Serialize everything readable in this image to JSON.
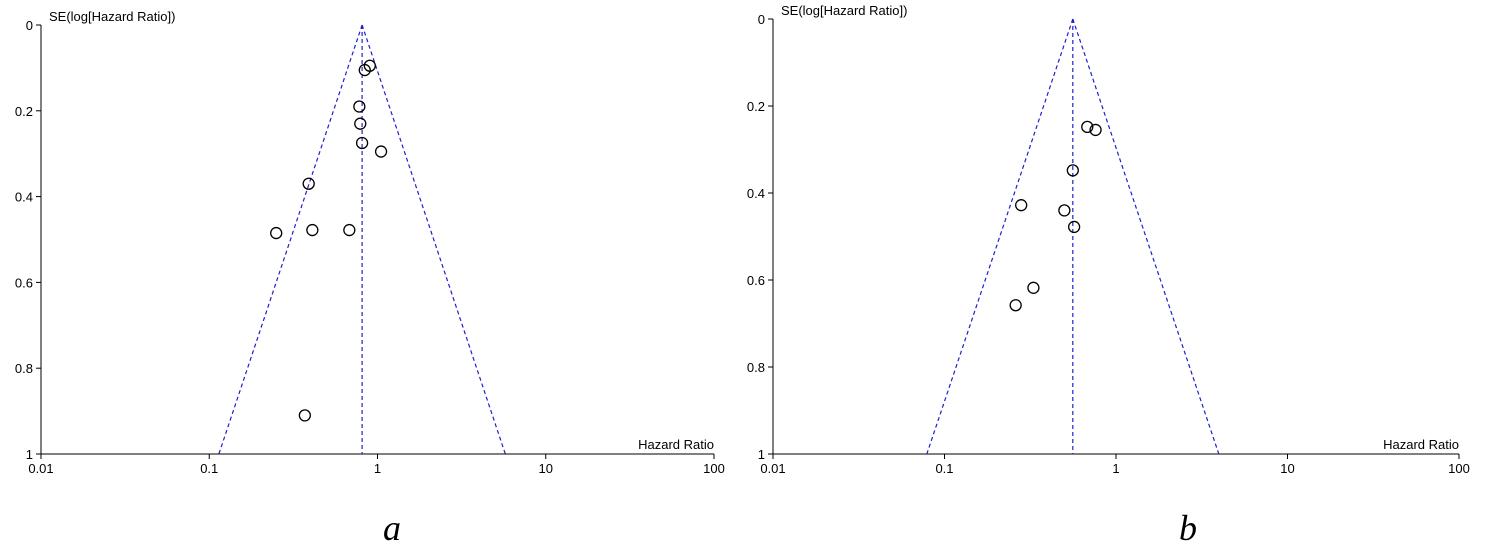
{
  "colors": {
    "funnel_line": "#1f1fcc",
    "axis": "#000000",
    "marker_stroke": "#000000",
    "background": "#ffffff"
  },
  "chart_data": [
    {
      "type": "scatter",
      "panel_label": "a",
      "xlabel": "Hazard Ratio",
      "ylabel": "SE(log[Hazard Ratio])",
      "xscale": "log",
      "xlim": [
        0.01,
        100
      ],
      "ylim": [
        0,
        1
      ],
      "y_inverted": true,
      "xticks": [
        0.01,
        0.1,
        1,
        10,
        100
      ],
      "xtick_labels": [
        "0.01",
        "0.1",
        "1",
        "10",
        "100"
      ],
      "yticks": [
        0,
        0.2,
        0.4,
        0.6,
        0.8,
        1
      ],
      "ytick_labels": [
        "0",
        "0.2",
        "0.4",
        "0.6",
        "0.8",
        "1"
      ],
      "pooled_estimate": 0.81,
      "funnel_se_max": 1,
      "points": [
        {
          "x": 0.9,
          "y": 0.095
        },
        {
          "x": 0.84,
          "y": 0.105
        },
        {
          "x": 0.78,
          "y": 0.19
        },
        {
          "x": 0.79,
          "y": 0.23
        },
        {
          "x": 0.81,
          "y": 0.275
        },
        {
          "x": 1.05,
          "y": 0.295
        },
        {
          "x": 0.39,
          "y": 0.37
        },
        {
          "x": 0.25,
          "y": 0.485
        },
        {
          "x": 0.41,
          "y": 0.478
        },
        {
          "x": 0.68,
          "y": 0.478
        },
        {
          "x": 0.37,
          "y": 0.91
        }
      ]
    },
    {
      "type": "scatter",
      "panel_label": "b",
      "xlabel": "Hazard Ratio",
      "ylabel": "SE(log[Hazard Ratio])",
      "xscale": "log",
      "xlim": [
        0.01,
        100
      ],
      "ylim": [
        0,
        1
      ],
      "y_inverted": true,
      "xticks": [
        0.01,
        0.1,
        1,
        10,
        100
      ],
      "xtick_labels": [
        "0.01",
        "0.1",
        "1",
        "10",
        "100"
      ],
      "yticks": [
        0,
        0.2,
        0.4,
        0.6,
        0.8,
        1
      ],
      "ytick_labels": [
        "0",
        "0.2",
        "0.4",
        "0.6",
        "0.8",
        "1"
      ],
      "pooled_estimate": 0.56,
      "funnel_se_max": 1,
      "points": [
        {
          "x": 0.68,
          "y": 0.248
        },
        {
          "x": 0.76,
          "y": 0.255
        },
        {
          "x": 0.56,
          "y": 0.348
        },
        {
          "x": 0.28,
          "y": 0.428
        },
        {
          "x": 0.5,
          "y": 0.44
        },
        {
          "x": 0.57,
          "y": 0.478
        },
        {
          "x": 0.33,
          "y": 0.618
        },
        {
          "x": 0.26,
          "y": 0.658
        }
      ]
    }
  ]
}
